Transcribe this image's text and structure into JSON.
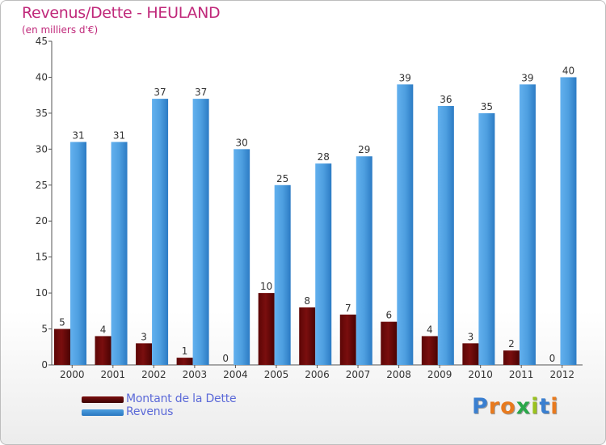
{
  "header": {
    "title": "Revenus/Dette - HEULAND",
    "subtitle": "(en milliers d'€)"
  },
  "legend": {
    "debt_label": "Montant de la Dette",
    "revenue_label": "Revenus"
  },
  "logo": {
    "text": "Proxiti"
  },
  "colors": {
    "debt": "#7a0e0e",
    "revenue": "#4e9fe0",
    "title": "#c0287a"
  },
  "chart_data": {
    "type": "bar",
    "title": "Revenus/Dette - HEULAND",
    "subtitle": "(en milliers d'€)",
    "xlabel": "",
    "ylabel": "",
    "ylim": [
      0,
      45
    ],
    "yticks": [
      0,
      5,
      10,
      15,
      20,
      25,
      30,
      35,
      40,
      45
    ],
    "grid": false,
    "legend": "bottom-left",
    "categories": [
      "2000",
      "2001",
      "2002",
      "2003",
      "2004",
      "2005",
      "2006",
      "2007",
      "2008",
      "2009",
      "2010",
      "2011",
      "2012"
    ],
    "series": [
      {
        "name": "Montant de la Dette",
        "values": [
          5,
          4,
          3,
          1,
          0,
          10,
          8,
          7,
          6,
          4,
          3,
          2,
          0
        ]
      },
      {
        "name": "Revenus",
        "values": [
          31,
          31,
          37,
          37,
          30,
          25,
          28,
          29,
          39,
          36,
          35,
          39,
          40
        ]
      }
    ]
  }
}
